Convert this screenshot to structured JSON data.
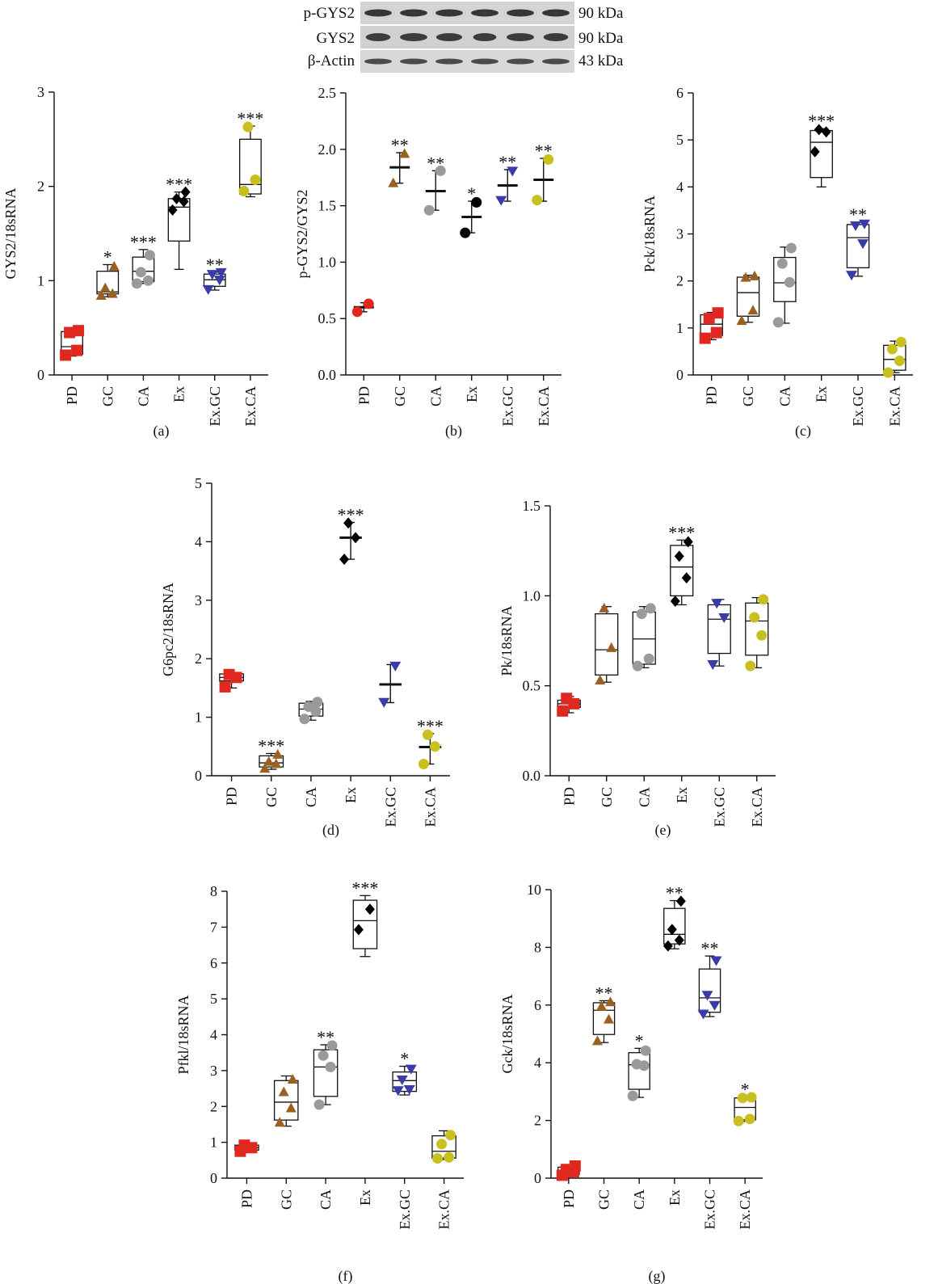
{
  "colors": {
    "PD": "#e02820",
    "GC": "#9a6020",
    "CA": "#9a9a9a",
    "Ex": "#000000",
    "Ex.GC": "#3a3aa8",
    "Ex.CA": "#c8c020"
  },
  "western_blot": {
    "rows": [
      {
        "label": "p-GYS2",
        "size": "90 kDa"
      },
      {
        "label": "GYS2",
        "size": "90 kDa"
      },
      {
        "label": "β-Actin",
        "size": "43 kDa"
      }
    ]
  },
  "chart_data": [
    {
      "panel": "(a)",
      "type": "box",
      "ylabel": "GYS2/18sRNA",
      "ylim": [
        0,
        3
      ],
      "yticks": [
        0,
        1,
        2,
        3
      ],
      "categories": [
        "PD",
        "GC",
        "CA",
        "Ex",
        "Ex.GC",
        "Ex.CA"
      ],
      "groups": [
        {
          "name": "PD",
          "marker": "square",
          "points": [
            0.21,
            0.26,
            0.45,
            0.47
          ],
          "min": 0.2,
          "q1": 0.22,
          "median": 0.3,
          "q3": 0.46,
          "max": 0.48,
          "sig": ""
        },
        {
          "name": "GC",
          "marker": "triangle-up",
          "points": [
            0.84,
            0.86,
            0.92,
            1.15
          ],
          "min": 0.83,
          "q1": 0.86,
          "median": 0.88,
          "q3": 1.1,
          "max": 1.17,
          "sig": "*"
        },
        {
          "name": "CA",
          "marker": "circle",
          "points": [
            0.97,
            1.0,
            1.09,
            1.27
          ],
          "min": 0.97,
          "q1": 0.99,
          "median": 1.1,
          "q3": 1.25,
          "max": 1.33,
          "sig": "***"
        },
        {
          "name": "Ex",
          "marker": "diamond",
          "points": [
            1.75,
            1.84,
            1.87,
            1.94
          ],
          "min": 1.12,
          "q1": 1.42,
          "median": 1.78,
          "q3": 1.87,
          "max": 1.94,
          "sig": "***"
        },
        {
          "name": "Ex.GC",
          "marker": "triangle-down",
          "points": [
            0.91,
            1.01,
            1.07,
            1.09
          ],
          "min": 0.9,
          "q1": 0.94,
          "median": 1.01,
          "q3": 1.07,
          "max": 1.09,
          "sig": "**"
        },
        {
          "name": "Ex.CA",
          "marker": "circle",
          "points": [
            1.95,
            2.07,
            2.63
          ],
          "min": 1.89,
          "q1": 1.92,
          "median": 2.02,
          "q3": 2.5,
          "max": 2.64,
          "sig": "***"
        }
      ]
    },
    {
      "panel": "(b)",
      "type": "meanbar",
      "ylabel": "p-GYS2/GYS2",
      "ylim": [
        0,
        2.5
      ],
      "yticks": [
        0.0,
        0.5,
        1.0,
        1.5,
        2.0,
        2.5
      ],
      "categories": [
        "PD",
        "GC",
        "CA",
        "Ex",
        "Ex.GC",
        "Ex.CA"
      ],
      "groups": [
        {
          "name": "PD",
          "marker": "circle",
          "points": [
            0.56,
            0.63
          ],
          "mean": 0.6,
          "low": 0.56,
          "high": 0.64,
          "sig": ""
        },
        {
          "name": "GC",
          "marker": "triangle-up",
          "points": [
            1.7,
            1.96
          ],
          "mean": 1.84,
          "low": 1.7,
          "high": 1.97,
          "sig": "**"
        },
        {
          "name": "CA",
          "marker": "circle",
          "points": [
            1.46,
            1.81
          ],
          "mean": 1.63,
          "low": 1.46,
          "high": 1.81,
          "sig": "**"
        },
        {
          "name": "Ex",
          "marker": "circle",
          "points": [
            1.26,
            1.53
          ],
          "mean": 1.4,
          "low": 1.26,
          "high": 1.54,
          "sig": "*"
        },
        {
          "name": "Ex.GC",
          "marker": "triangle-down",
          "points": [
            1.55,
            1.81
          ],
          "mean": 1.68,
          "low": 1.54,
          "high": 1.82,
          "sig": "**"
        },
        {
          "name": "Ex.CA",
          "marker": "circle",
          "points": [
            1.55,
            1.91
          ],
          "mean": 1.73,
          "low": 1.54,
          "high": 1.92,
          "sig": "**"
        }
      ]
    },
    {
      "panel": "(c)",
      "type": "box",
      "ylabel": "Pck/18sRNA",
      "ylim": [
        0,
        6
      ],
      "yticks": [
        0,
        1,
        2,
        3,
        4,
        5,
        6
      ],
      "categories": [
        "PD",
        "GC",
        "CA",
        "Ex",
        "Ex.GC",
        "Ex.CA"
      ],
      "groups": [
        {
          "name": "PD",
          "marker": "square",
          "points": [
            0.78,
            0.9,
            1.2,
            1.32
          ],
          "min": 0.75,
          "q1": 0.84,
          "median": 1.08,
          "q3": 1.28,
          "max": 1.33,
          "sig": ""
        },
        {
          "name": "GC",
          "marker": "triangle-up",
          "points": [
            1.15,
            1.37,
            2.07,
            2.1
          ],
          "min": 1.12,
          "q1": 1.25,
          "median": 1.75,
          "q3": 2.08,
          "max": 2.12,
          "sig": ""
        },
        {
          "name": "CA",
          "marker": "circle",
          "points": [
            1.12,
            1.97,
            2.37,
            2.7
          ],
          "min": 1.1,
          "q1": 1.56,
          "median": 1.96,
          "q3": 2.5,
          "max": 2.72,
          "sig": ""
        },
        {
          "name": "Ex",
          "marker": "diamond",
          "points": [
            4.75,
            5.17,
            5.22
          ],
          "min": 4.0,
          "q1": 4.2,
          "median": 4.95,
          "q3": 5.2,
          "max": 5.24,
          "sig": "***"
        },
        {
          "name": "Ex.GC",
          "marker": "triangle-down",
          "points": [
            2.13,
            2.8,
            3.18,
            3.22
          ],
          "min": 2.1,
          "q1": 2.28,
          "median": 2.92,
          "q3": 3.2,
          "max": 3.25,
          "sig": "**"
        },
        {
          "name": "Ex.CA",
          "marker": "circle",
          "points": [
            0.05,
            0.3,
            0.55,
            0.7
          ],
          "min": 0.05,
          "q1": 0.1,
          "median": 0.33,
          "q3": 0.63,
          "max": 0.72,
          "sig": ""
        }
      ]
    },
    {
      "panel": "(d)",
      "type": "mixed",
      "ylabel": "G6pc2/18sRNA",
      "ylim": [
        0,
        5
      ],
      "yticks": [
        0,
        1,
        2,
        3,
        4,
        5
      ],
      "categories": [
        "PD",
        "GC",
        "CA",
        "Ex",
        "Ex.GC",
        "Ex.CA"
      ],
      "groups": [
        {
          "name": "PD",
          "style": "box",
          "marker": "square",
          "points": [
            1.52,
            1.68,
            1.73
          ],
          "min": 1.5,
          "q1": 1.62,
          "median": 1.68,
          "q3": 1.74,
          "max": 1.76,
          "sig": ""
        },
        {
          "name": "GC",
          "style": "box",
          "marker": "triangle-up",
          "points": [
            0.12,
            0.2,
            0.24,
            0.36
          ],
          "min": 0.11,
          "q1": 0.15,
          "median": 0.22,
          "q3": 0.34,
          "max": 0.38,
          "sig": "***"
        },
        {
          "name": "CA",
          "style": "box",
          "marker": "circle",
          "points": [
            0.97,
            1.1,
            1.18,
            1.26
          ],
          "min": 0.95,
          "q1": 1.02,
          "median": 1.14,
          "q3": 1.24,
          "max": 1.27,
          "sig": ""
        },
        {
          "name": "Ex",
          "style": "meanbar",
          "marker": "diamond",
          "points": [
            3.7,
            4.07,
            4.32
          ],
          "mean": 4.07,
          "low": 3.7,
          "high": 4.33,
          "sig": "***"
        },
        {
          "name": "Ex.GC",
          "style": "meanbar",
          "marker": "triangle-down",
          "points": [
            1.26,
            1.88
          ],
          "mean": 1.56,
          "low": 1.25,
          "high": 1.9,
          "sig": ""
        },
        {
          "name": "Ex.CA",
          "style": "meanbar",
          "marker": "circle",
          "points": [
            0.2,
            0.5,
            0.7
          ],
          "mean": 0.49,
          "low": 0.2,
          "high": 0.72,
          "sig": "***"
        }
      ]
    },
    {
      "panel": "(e)",
      "type": "box",
      "ylabel": "Pk/18sRNA",
      "ylim": [
        0,
        1.5
      ],
      "yticks": [
        0.0,
        0.5,
        1.0,
        1.5
      ],
      "categories": [
        "PD",
        "GC",
        "CA",
        "Ex",
        "Ex.GC",
        "Ex.CA"
      ],
      "groups": [
        {
          "name": "PD",
          "marker": "square",
          "points": [
            0.36,
            0.4,
            0.43
          ],
          "min": 0.35,
          "q1": 0.38,
          "median": 0.4,
          "q3": 0.42,
          "max": 0.44,
          "sig": ""
        },
        {
          "name": "GC",
          "marker": "triangle-up",
          "points": [
            0.53,
            0.71,
            0.93
          ],
          "min": 0.52,
          "q1": 0.56,
          "median": 0.7,
          "q3": 0.9,
          "max": 0.94,
          "sig": ""
        },
        {
          "name": "CA",
          "marker": "circle",
          "points": [
            0.61,
            0.65,
            0.9,
            0.93
          ],
          "min": 0.6,
          "q1": 0.62,
          "median": 0.76,
          "q3": 0.91,
          "max": 0.94,
          "sig": ""
        },
        {
          "name": "Ex",
          "marker": "diamond",
          "points": [
            0.97,
            1.1,
            1.22,
            1.3
          ],
          "min": 0.95,
          "q1": 1.0,
          "median": 1.16,
          "q3": 1.28,
          "max": 1.31,
          "sig": "***"
        },
        {
          "name": "Ex.GC",
          "marker": "triangle-down",
          "points": [
            0.62,
            0.88,
            0.96
          ],
          "min": 0.61,
          "q1": 0.68,
          "median": 0.87,
          "q3": 0.95,
          "max": 0.98,
          "sig": ""
        },
        {
          "name": "Ex.CA",
          "marker": "circle",
          "points": [
            0.61,
            0.78,
            0.88,
            0.98
          ],
          "min": 0.6,
          "q1": 0.67,
          "median": 0.86,
          "q3": 0.96,
          "max": 0.99,
          "sig": ""
        }
      ]
    },
    {
      "panel": "(f)",
      "type": "box",
      "ylabel": "Pfkl/18sRNA",
      "ylim": [
        0,
        8
      ],
      "yticks": [
        0,
        1,
        2,
        3,
        4,
        5,
        6,
        7,
        8
      ],
      "categories": [
        "PD",
        "GC",
        "CA",
        "Ex",
        "Ex.GC",
        "Ex.CA"
      ],
      "groups": [
        {
          "name": "PD",
          "marker": "square",
          "points": [
            0.75,
            0.85,
            0.92
          ],
          "min": 0.72,
          "q1": 0.78,
          "median": 0.85,
          "q3": 0.92,
          "max": 0.96,
          "sig": ""
        },
        {
          "name": "GC",
          "marker": "triangle-up",
          "points": [
            1.55,
            1.95,
            2.4,
            2.75
          ],
          "min": 1.45,
          "q1": 1.62,
          "median": 2.12,
          "q3": 2.72,
          "max": 2.85,
          "sig": ""
        },
        {
          "name": "CA",
          "marker": "circle",
          "points": [
            2.05,
            3.1,
            3.42,
            3.7
          ],
          "min": 2.05,
          "q1": 2.28,
          "median": 3.1,
          "q3": 3.58,
          "max": 3.72,
          "sig": "**"
        },
        {
          "name": "Ex",
          "marker": "diamond",
          "points": [
            6.93,
            7.5
          ],
          "min": 6.18,
          "q1": 6.4,
          "median": 7.18,
          "q3": 7.75,
          "max": 7.88,
          "sig": "***"
        },
        {
          "name": "Ex.GC",
          "marker": "triangle-down",
          "points": [
            2.45,
            2.48,
            2.75,
            3.05
          ],
          "min": 2.32,
          "q1": 2.42,
          "median": 2.72,
          "q3": 2.96,
          "max": 3.12,
          "sig": "*"
        },
        {
          "name": "Ex.CA",
          "marker": "circle",
          "points": [
            0.55,
            0.58,
            0.95,
            1.2
          ],
          "min": 0.52,
          "q1": 0.56,
          "median": 0.75,
          "q3": 1.18,
          "max": 1.32,
          "sig": ""
        }
      ]
    },
    {
      "panel": "(g)",
      "type": "box",
      "ylabel": "Gck/18sRNA",
      "ylim": [
        0,
        10
      ],
      "yticks": [
        0,
        2,
        4,
        6,
        8,
        10
      ],
      "categories": [
        "PD",
        "GC",
        "CA",
        "Ex",
        "Ex.GC",
        "Ex.CA"
      ],
      "groups": [
        {
          "name": "PD",
          "marker": "square",
          "points": [
            0.1,
            0.22,
            0.3,
            0.42
          ],
          "min": 0.05,
          "q1": 0.12,
          "median": 0.24,
          "q3": 0.38,
          "max": 0.45,
          "sig": ""
        },
        {
          "name": "GC",
          "marker": "triangle-up",
          "points": [
            4.75,
            5.5,
            5.95,
            6.1
          ],
          "min": 4.7,
          "q1": 4.98,
          "median": 5.82,
          "q3": 6.08,
          "max": 6.15,
          "sig": "**"
        },
        {
          "name": "CA",
          "marker": "circle",
          "points": [
            2.85,
            3.9,
            3.95,
            4.42
          ],
          "min": 2.8,
          "q1": 3.08,
          "median": 3.93,
          "q3": 4.35,
          "max": 4.5,
          "sig": "*"
        },
        {
          "name": "Ex",
          "marker": "diamond",
          "points": [
            8.05,
            8.25,
            8.62,
            9.6
          ],
          "min": 7.95,
          "q1": 8.12,
          "median": 8.45,
          "q3": 9.35,
          "max": 9.62,
          "sig": "**"
        },
        {
          "name": "Ex.GC",
          "marker": "triangle-down",
          "points": [
            5.7,
            6.0,
            6.35,
            7.55
          ],
          "min": 5.6,
          "q1": 5.75,
          "median": 6.25,
          "q3": 7.25,
          "max": 7.7,
          "sig": "**"
        },
        {
          "name": "Ex.CA",
          "marker": "circle",
          "points": [
            1.98,
            2.05,
            2.78,
            2.8
          ],
          "min": 1.97,
          "q1": 2.02,
          "median": 2.45,
          "q3": 2.78,
          "max": 2.82,
          "sig": "*"
        }
      ]
    }
  ]
}
